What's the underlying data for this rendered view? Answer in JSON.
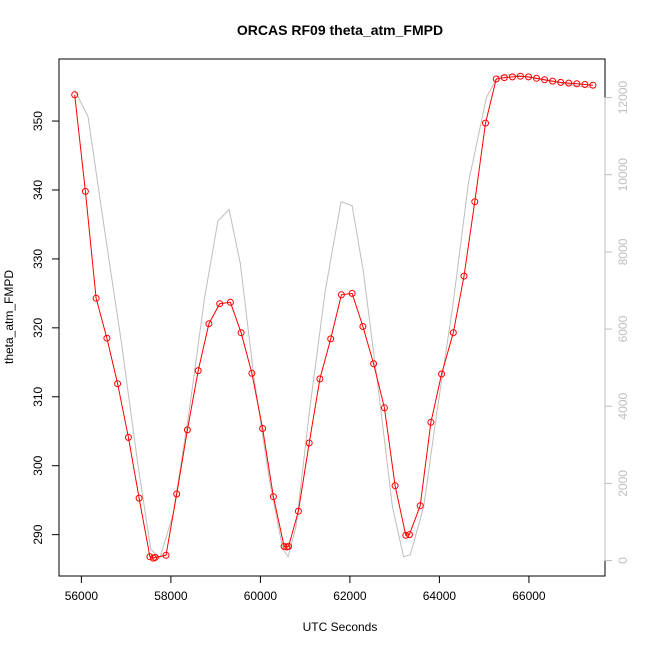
{
  "chart_data": {
    "type": "line",
    "title": "ORCAS RF09 theta_atm_FMPD",
    "xlabel": "UTC Seconds",
    "ylabel": "theta_atm_FMPD",
    "xlim": [
      55500,
      67700
    ],
    "ylim": [
      284,
      359
    ],
    "ylim_right": [
      -400,
      13000
    ],
    "x_ticks": [
      56000,
      58000,
      60000,
      62000,
      64000,
      66000
    ],
    "y_ticks": [
      290,
      300,
      310,
      320,
      330,
      340,
      350
    ],
    "y_ticks_right": [
      0,
      2000,
      4000,
      6000,
      8000,
      10000,
      12000
    ],
    "grid": false,
    "colors": {
      "primary": "#ff0000",
      "secondary": "#bebebe",
      "axis": "#000000"
    },
    "series": [
      {
        "axis": "left",
        "style": "line+points",
        "color": "#ff0000",
        "x": [
          55850,
          56090,
          56330,
          56570,
          56810,
          57050,
          57290,
          57530,
          57610,
          57650,
          57890,
          58130,
          58370,
          58610,
          58850,
          59090,
          59330,
          59570,
          59810,
          60050,
          60290,
          60530,
          60590,
          60630,
          60850,
          61090,
          61330,
          61570,
          61810,
          62050,
          62290,
          62530,
          62770,
          63010,
          63250,
          63330,
          63570,
          63810,
          64050,
          64310,
          64550,
          64790,
          65030,
          65270,
          65450,
          65630,
          65810,
          65990,
          66170,
          66350,
          66530,
          66710,
          66890,
          67070,
          67250,
          67430
        ],
        "y": [
          353.8,
          339.8,
          324.3,
          318.5,
          311.9,
          304.1,
          295.3,
          286.8,
          286.6,
          286.7,
          287.0,
          295.9,
          305.2,
          313.8,
          320.6,
          323.5,
          323.7,
          319.3,
          313.4,
          305.4,
          295.5,
          288.3,
          288.2,
          288.3,
          293.4,
          303.3,
          312.6,
          318.4,
          324.8,
          325.0,
          320.2,
          314.8,
          308.4,
          297.1,
          289.9,
          290.0,
          294.2,
          306.3,
          313.3,
          319.3,
          327.5,
          338.3,
          349.7,
          356.1,
          356.3,
          356.4,
          356.5,
          356.4,
          356.2,
          356.0,
          355.8,
          355.6,
          355.5,
          355.4,
          355.3,
          355.2
        ]
      },
      {
        "axis": "right",
        "style": "line",
        "color": "#bebebe",
        "x": [
          55850,
          56150,
          56500,
          56900,
          57250,
          57550,
          57750,
          58050,
          58400,
          58750,
          59050,
          59300,
          59550,
          59850,
          60200,
          60500,
          60620,
          60800,
          61100,
          61450,
          61800,
          62050,
          62300,
          62650,
          62950,
          63200,
          63350,
          63650,
          63950,
          64300,
          64650,
          65050,
          65300,
          65600,
          66100,
          66600,
          67100,
          67500
        ],
        "y": [
          12200,
          11500,
          8700,
          5600,
          2600,
          300,
          50,
          1200,
          3800,
          6800,
          8800,
          9100,
          7700,
          4800,
          2100,
          300,
          100,
          900,
          3900,
          7000,
          9300,
          9200,
          7500,
          4300,
          1400,
          100,
          150,
          1400,
          3900,
          6600,
          9800,
          12000,
          12550,
          12600,
          12500,
          12400,
          12300,
          12250
        ]
      }
    ]
  }
}
